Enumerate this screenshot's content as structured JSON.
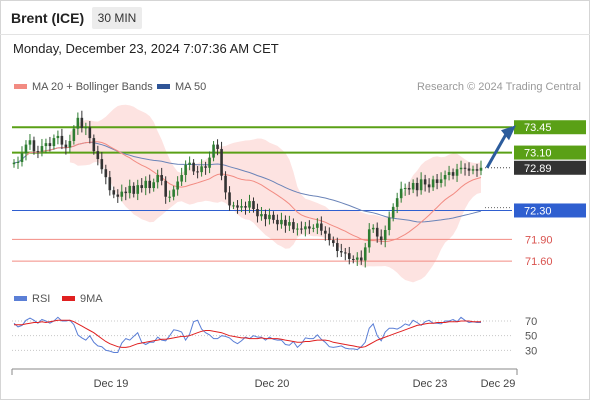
{
  "header": {
    "instrument": "Brent (ICE)",
    "timeframe": "30 MIN"
  },
  "timestamp": "Monday, December 23, 2024 7:07:36 AM CET",
  "legend": {
    "items": [
      {
        "label": "MA 20 + Bollinger Bands",
        "color": "#f28b82"
      },
      {
        "label": "MA 50",
        "color": "#2f5597"
      }
    ],
    "credit": "Research © 2024 Trading Central"
  },
  "rsi_legend": {
    "items": [
      {
        "label": "RSI",
        "color": "#5b7fd6"
      },
      {
        "label": "9MA",
        "color": "#e02020"
      }
    ]
  },
  "colors": {
    "resistance": "#5aa016",
    "support": "#2f5fd0",
    "minor_support": "#f28b82",
    "candle_up": "#2e7d32",
    "candle_down": "#333333",
    "last_price_box": "#333333",
    "arrow": "#2c5c9c"
  },
  "chart_data": {
    "type": "candlestick",
    "x_ticks": [
      "Dec 19",
      "Dec 20",
      "Dec 23",
      "Dec 29"
    ],
    "y_range": [
      71.45,
      73.55
    ],
    "levels": [
      {
        "label": "73.45",
        "value": 73.45,
        "kind": "resistance"
      },
      {
        "label": "73.10",
        "value": 73.1,
        "kind": "resistance"
      },
      {
        "label": "72.89",
        "value": 72.89,
        "kind": "last"
      },
      {
        "label": "72.30",
        "value": 72.3,
        "kind": "support"
      },
      {
        "label": "71.90",
        "value": 71.9,
        "kind": "minor"
      },
      {
        "label": "71.60",
        "value": 71.6,
        "kind": "minor"
      }
    ],
    "last_price": 72.89,
    "forecast": {
      "from": 72.89,
      "to": 73.45,
      "direction": "up"
    },
    "closes": [
      72.96,
      72.97,
      73.09,
      73.21,
      73.27,
      73.12,
      73.11,
      73.19,
      73.23,
      73.19,
      73.3,
      73.33,
      73.21,
      73.17,
      73.26,
      73.43,
      73.58,
      73.44,
      73.45,
      73.3,
      73.12,
      73.01,
      72.87,
      72.76,
      72.58,
      72.52,
      72.49,
      72.56,
      72.54,
      72.64,
      72.53,
      72.65,
      72.61,
      72.71,
      72.61,
      72.69,
      72.79,
      72.71,
      72.49,
      72.49,
      72.59,
      72.7,
      72.79,
      72.93,
      72.96,
      72.84,
      72.83,
      72.91,
      72.89,
      73.03,
      73.21,
      73.15,
      72.78,
      72.55,
      72.37,
      72.37,
      72.34,
      72.36,
      72.34,
      72.43,
      72.32,
      72.22,
      72.25,
      72.18,
      72.24,
      72.17,
      72.11,
      72.17,
      72.09,
      72.14,
      72.04,
      72.05,
      72.04,
      72.08,
      72.05,
      72.06,
      72.12,
      72.02,
      71.98,
      71.89,
      71.85,
      71.74,
      71.72,
      71.71,
      71.63,
      71.62,
      71.65,
      71.61,
      71.79,
      72.04,
      72.06,
      71.94,
      71.89,
      72.03,
      72.2,
      72.35,
      72.47,
      72.6,
      72.61,
      72.59,
      72.68,
      72.58,
      72.73,
      72.66,
      72.62,
      72.73,
      72.68,
      72.73,
      72.79,
      72.83,
      72.78,
      72.87,
      72.89,
      72.88,
      72.85,
      72.87,
      72.85,
      72.89
    ],
    "rsi": {
      "levels": [
        70,
        50,
        30
      ],
      "range": [
        10,
        85
      ],
      "rsi": [
        67,
        62,
        64,
        71,
        74,
        71,
        67,
        72,
        70,
        67,
        70,
        75,
        70,
        70,
        71,
        65,
        51,
        47,
        44,
        50,
        41,
        36,
        35,
        30,
        29,
        27,
        27,
        40,
        46,
        44,
        49,
        54,
        41,
        38,
        41,
        41,
        48,
        44,
        43,
        50,
        58,
        57,
        55,
        44,
        52,
        69,
        71,
        59,
        54,
        51,
        46,
        46,
        50,
        49,
        47,
        42,
        39,
        43,
        48,
        46,
        50,
        48,
        48,
        44,
        48,
        45,
        44,
        44,
        38,
        37,
        42,
        34,
        39,
        47,
        46,
        46,
        51,
        45,
        41,
        35,
        34,
        35,
        36,
        33,
        32,
        32,
        31,
        35,
        41,
        60,
        66,
        50,
        43,
        55,
        60,
        60,
        59,
        62,
        66,
        64,
        71,
        68,
        64,
        69,
        71,
        67,
        67,
        66,
        70,
        70,
        72,
        69,
        75,
        71,
        68,
        69,
        68,
        68
      ],
      "ma": [
        65,
        65,
        65,
        66,
        67,
        68,
        68,
        69,
        68,
        69,
        70,
        71,
        71,
        71,
        71,
        69,
        66,
        63,
        60,
        57,
        54,
        50,
        46,
        42,
        39,
        37,
        35,
        34,
        34,
        35,
        37,
        39,
        40,
        41,
        42,
        43,
        44,
        45,
        45,
        46,
        47,
        48,
        49,
        49,
        50,
        52,
        54,
        56,
        57,
        57,
        56,
        55,
        54,
        52,
        50,
        49,
        48,
        47,
        47,
        46,
        46,
        46,
        47,
        46,
        46,
        46,
        46,
        45,
        44,
        43,
        42,
        41,
        41,
        42,
        42,
        43,
        44,
        44,
        44,
        43,
        41,
        40,
        39,
        38,
        37,
        36,
        35,
        34,
        35,
        38,
        41,
        44,
        46,
        48,
        50,
        52,
        54,
        56,
        58,
        60,
        62,
        64,
        65,
        66,
        67,
        67,
        68,
        68,
        68,
        69,
        69,
        69,
        70,
        70,
        70,
        69,
        69,
        69
      ]
    }
  }
}
